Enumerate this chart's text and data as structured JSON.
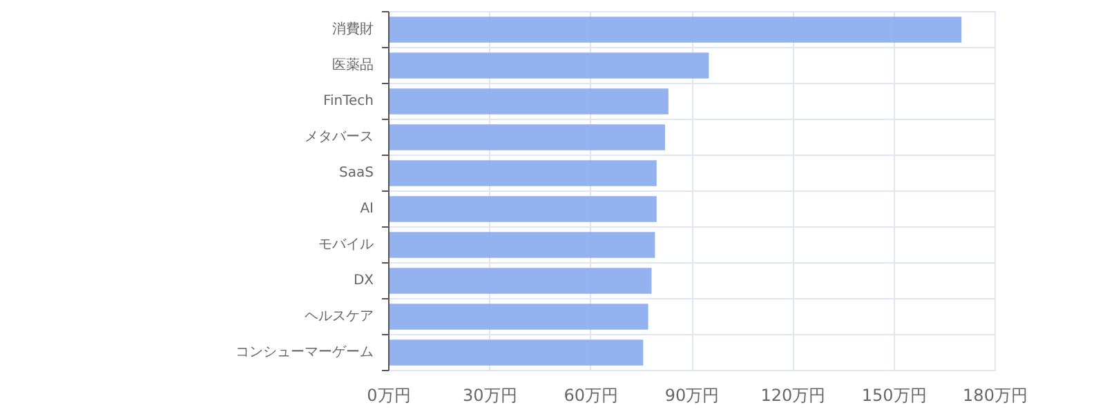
{
  "chart_data": {
    "type": "bar",
    "orientation": "horizontal",
    "categories": [
      "消費財",
      "医薬品",
      "FinTech",
      "メタバース",
      "SaaS",
      "AI",
      "モバイル",
      "DX",
      "ヘルスケア",
      "コンシューマーゲーム"
    ],
    "values": [
      170,
      95,
      83,
      82,
      79.5,
      79.5,
      79,
      78,
      77,
      75.5
    ],
    "color": "#8eaeee",
    "xlim": [
      0,
      180
    ],
    "xticks": [
      {
        "value": 0,
        "label": "0万円"
      },
      {
        "value": 30,
        "label": "30万円"
      },
      {
        "value": 60,
        "label": "60万円"
      },
      {
        "value": 90,
        "label": "90万円"
      },
      {
        "value": 120,
        "label": "120万円"
      },
      {
        "value": 150,
        "label": "150万円"
      },
      {
        "value": 180,
        "label": "180万円"
      }
    ],
    "grid": true
  }
}
